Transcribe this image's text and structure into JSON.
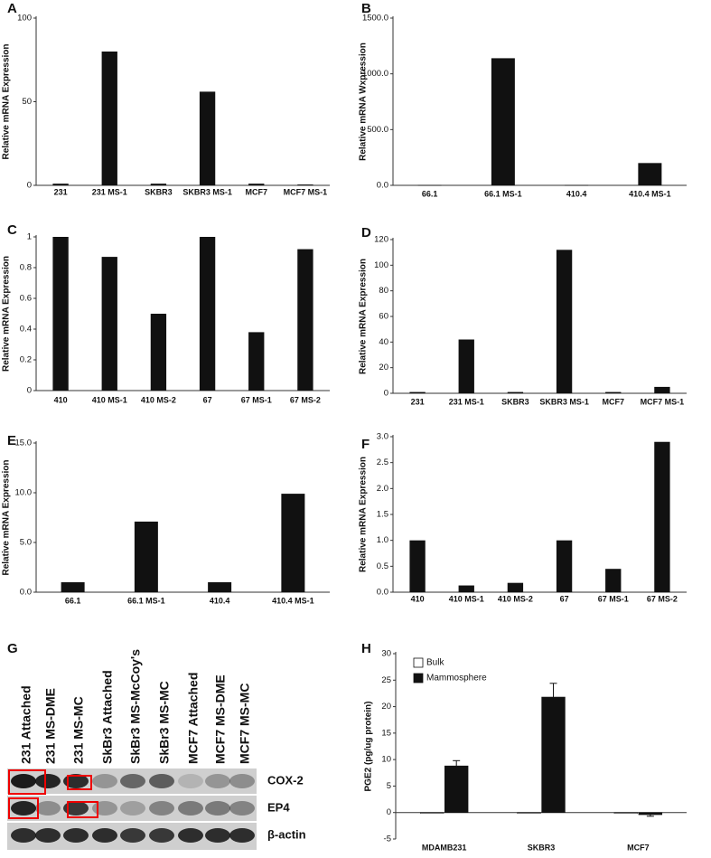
{
  "chart_data": [
    {
      "type": "bar",
      "panel": "A",
      "y_label": "Relative mRNA Expression",
      "categories": [
        "231",
        "231 MS-1",
        "SKBR3",
        "SKBR3 MS-1",
        "MCF7",
        "MCF7 MS-1"
      ],
      "values": [
        1,
        80,
        1,
        56,
        1,
        0.5
      ],
      "color": "#111111",
      "ylim": [
        0,
        100
      ],
      "yticks": [
        0,
        50,
        100
      ]
    },
    {
      "type": "bar",
      "panel": "B",
      "y_label": "Relative mRNA Wxpression",
      "categories": [
        "66.1",
        "66.1 MS-1",
        "410.4",
        "410.4 MS-1"
      ],
      "values": [
        3,
        1140,
        3,
        200
      ],
      "color": "#111111",
      "ylim": [
        0,
        1500
      ],
      "yticks": [
        {
          "value": 0,
          "label": "0.0"
        },
        {
          "value": 500,
          "label": "500.0"
        },
        {
          "value": 1000,
          "label": "1000.0"
        },
        {
          "value": 1500,
          "label": "1500.0"
        }
      ]
    },
    {
      "type": "bar",
      "panel": "C",
      "y_label": "Relative mRNA Expression",
      "categories": [
        "410",
        "410 MS-1",
        "410 MS-2",
        "67",
        "67 MS-1",
        "67 MS-2"
      ],
      "values": [
        1,
        0.87,
        0.5,
        1,
        0.38,
        0.92
      ],
      "color": "#111111",
      "ylim": [
        0,
        1
      ],
      "yticks": [
        0,
        0.2,
        0.4,
        0.6,
        0.8,
        1
      ]
    },
    {
      "type": "bar",
      "panel": "D",
      "y_label": "Relative mRNA Expression",
      "categories": [
        "231",
        "231 MS-1",
        "SKBR3",
        "SKBR3 MS-1",
        "MCF7",
        "MCF7 MS-1"
      ],
      "values": [
        1,
        42,
        1,
        112,
        1,
        5
      ],
      "color": "#111111",
      "ylim": [
        0,
        120
      ],
      "yticks": [
        0,
        20,
        40,
        60,
        80,
        100,
        120
      ]
    },
    {
      "type": "bar",
      "panel": "E",
      "y_label": "Relative mRNA Expression",
      "categories": [
        "66.1",
        "66.1 MS-1",
        "410.4",
        "410.4 MS-1"
      ],
      "values": [
        1,
        7.1,
        1,
        9.9
      ],
      "color": "#111111",
      "ylim": [
        0,
        15
      ],
      "yticks": [
        {
          "value": 0,
          "label": "0.0"
        },
        {
          "value": 5,
          "label": "5.0"
        },
        {
          "value": 10,
          "label": "10.0"
        },
        {
          "value": 15,
          "label": "15.0"
        }
      ]
    },
    {
      "type": "bar",
      "panel": "F",
      "y_label": "Relative mRNA Expression",
      "categories": [
        "410",
        "410 MS-1",
        "410 MS-2",
        "67",
        "67 MS-1",
        "67 MS-2"
      ],
      "values": [
        1,
        0.13,
        0.18,
        1,
        0.45,
        2.9
      ],
      "color": "#111111",
      "ylim": [
        0,
        3
      ],
      "yticks": [
        {
          "value": 0,
          "label": "0.0"
        },
        {
          "value": 0.5,
          "label": "0.5"
        },
        {
          "value": 1,
          "label": "1.0"
        },
        {
          "value": 1.5,
          "label": "1.5"
        },
        {
          "value": 2,
          "label": "2.0"
        },
        {
          "value": 2.5,
          "label": "2.5"
        },
        {
          "value": 3,
          "label": "3.0"
        }
      ]
    },
    {
      "type": "bar",
      "panel": "H",
      "y_label": "PGE2 (pg/ug protein)",
      "categories": [
        "MDAMB231",
        "SKBR3",
        "MCF7"
      ],
      "series": [
        {
          "name": "Bulk",
          "color": "#ffffff",
          "values": [
            0,
            0,
            0
          ]
        },
        {
          "name": "Mammosphere",
          "color": "#111111",
          "values": [
            8.8,
            21.8,
            -0.4
          ],
          "errors": [
            1,
            2.6,
            0.3
          ]
        }
      ],
      "ylim": [
        -5,
        30
      ],
      "yticks": [
        -5,
        0,
        5,
        10,
        15,
        20,
        25,
        30
      ],
      "legend": "upper left"
    }
  ],
  "blot": {
    "panel": "G",
    "lanes": [
      "231 Attached",
      "231 MS-DME",
      "231 MS-MC",
      "SkBr3 Attached",
      "SkBr3 MS-McCoy's",
      "SkBr3 MS-MC",
      "MCF7 Attached",
      "MCF7 MS-DME",
      "MCF7 MS-MC"
    ],
    "bands": [
      "COX-2",
      "EP4",
      "β-actin"
    ]
  }
}
